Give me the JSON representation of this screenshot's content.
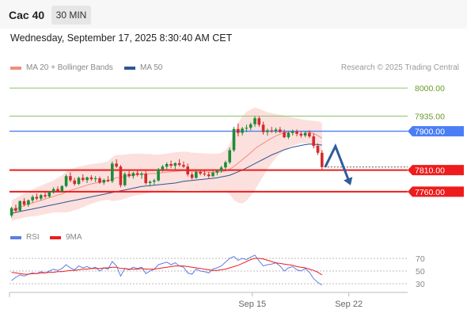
{
  "header": {
    "instrument": "Cac 40",
    "timeframe": "30 MIN"
  },
  "datetime": "Wednesday, September 17, 2025 8:30:40 AM CET",
  "legend": [
    {
      "label": "MA 20 + Bollinger Bands",
      "color": "#f28b82"
    },
    {
      "label": "MA 50",
      "color": "#2f5597"
    }
  ],
  "rsi_legend": [
    {
      "label": "RSI",
      "color": "#5b7ee5"
    },
    {
      "label": "9MA",
      "color": "#ee1c1c"
    }
  ],
  "credit": "Research © 2025 Trading Central",
  "colors": {
    "up": "#1e8c3a",
    "down": "#d22b2b",
    "support": "#ee1c1c",
    "pivot": "#4a7ef5",
    "resistance": "#8dc46a",
    "arrow": "#2f5c9a"
  },
  "chart_data": {
    "type": "candlestick",
    "ylim": [
      7690,
      8035
    ],
    "levels": [
      {
        "value": 8000,
        "label": "8000.00",
        "kind": "resistance"
      },
      {
        "value": 7935,
        "label": "7935.00",
        "kind": "resistance"
      },
      {
        "value": 7900,
        "label": "7900.00",
        "kind": "pivot"
      },
      {
        "value": 7810,
        "label": "7810.00",
        "kind": "support"
      },
      {
        "value": 7760,
        "label": "7760.00",
        "kind": "support"
      }
    ],
    "last_price": 7817,
    "projection": [
      7817,
      7865,
      7780
    ],
    "x_ticks": [
      {
        "label": "Sep 15",
        "at_bar": 57
      },
      {
        "label": "Sep 22",
        "at_bar": 80
      }
    ],
    "candles_ohlc": [
      [
        7705,
        7725,
        7700,
        7722
      ],
      [
        7722,
        7730,
        7712,
        7716
      ],
      [
        7716,
        7740,
        7714,
        7738
      ],
      [
        7738,
        7745,
        7726,
        7730
      ],
      [
        7730,
        7742,
        7725,
        7740
      ],
      [
        7740,
        7752,
        7735,
        7748
      ],
      [
        7748,
        7756,
        7740,
        7744
      ],
      [
        7744,
        7755,
        7740,
        7752
      ],
      [
        7752,
        7760,
        7745,
        7749
      ],
      [
        7749,
        7762,
        7746,
        7760
      ],
      [
        7760,
        7770,
        7755,
        7766
      ],
      [
        7766,
        7772,
        7758,
        7761
      ],
      [
        7761,
        7775,
        7759,
        7773
      ],
      [
        7773,
        7800,
        7770,
        7796
      ],
      [
        7796,
        7805,
        7782,
        7786
      ],
      [
        7786,
        7792,
        7774,
        7778
      ],
      [
        7778,
        7795,
        7775,
        7792
      ],
      [
        7792,
        7800,
        7783,
        7787
      ],
      [
        7787,
        7795,
        7780,
        7793
      ],
      [
        7793,
        7798,
        7785,
        7789
      ],
      [
        7789,
        7796,
        7782,
        7791
      ],
      [
        7791,
        7795,
        7778,
        7781
      ],
      [
        7781,
        7790,
        7776,
        7787
      ],
      [
        7787,
        7796,
        7782,
        7784
      ],
      [
        7784,
        7830,
        7780,
        7825
      ],
      [
        7825,
        7835,
        7815,
        7818
      ],
      [
        7818,
        7822,
        7770,
        7775
      ],
      [
        7775,
        7805,
        7772,
        7801
      ],
      [
        7801,
        7808,
        7792,
        7796
      ],
      [
        7796,
        7806,
        7790,
        7803
      ],
      [
        7803,
        7810,
        7795,
        7799
      ],
      [
        7799,
        7806,
        7790,
        7802
      ],
      [
        7802,
        7808,
        7776,
        7780
      ],
      [
        7780,
        7786,
        7772,
        7783
      ],
      [
        7783,
        7790,
        7776,
        7786
      ],
      [
        7786,
        7815,
        7783,
        7812
      ],
      [
        7812,
        7822,
        7806,
        7818
      ],
      [
        7818,
        7828,
        7812,
        7824
      ],
      [
        7824,
        7832,
        7815,
        7820
      ],
      [
        7820,
        7828,
        7812,
        7826
      ],
      [
        7826,
        7835,
        7818,
        7822
      ],
      [
        7822,
        7830,
        7815,
        7818
      ],
      [
        7818,
        7825,
        7795,
        7800
      ],
      [
        7800,
        7805,
        7788,
        7792
      ],
      [
        7792,
        7808,
        7790,
        7806
      ],
      [
        7806,
        7812,
        7798,
        7802
      ],
      [
        7802,
        7810,
        7796,
        7800
      ],
      [
        7800,
        7806,
        7792,
        7796
      ],
      [
        7796,
        7808,
        7794,
        7804
      ],
      [
        7804,
        7812,
        7798,
        7808
      ],
      [
        7808,
        7820,
        7804,
        7816
      ],
      [
        7816,
        7832,
        7812,
        7828
      ],
      [
        7828,
        7862,
        7824,
        7856
      ],
      [
        7856,
        7910,
        7852,
        7905
      ],
      [
        7905,
        7918,
        7888,
        7896
      ],
      [
        7896,
        7910,
        7890,
        7906
      ],
      [
        7906,
        7915,
        7898,
        7908
      ],
      [
        7908,
        7920,
        7902,
        7916
      ],
      [
        7916,
        7935,
        7910,
        7930
      ],
      [
        7930,
        7934,
        7910,
        7915
      ],
      [
        7915,
        7922,
        7892,
        7898
      ],
      [
        7898,
        7906,
        7890,
        7902
      ],
      [
        7902,
        7910,
        7896,
        7900
      ],
      [
        7900,
        7908,
        7895,
        7904
      ],
      [
        7904,
        7910,
        7896,
        7898
      ],
      [
        7898,
        7904,
        7884,
        7886
      ],
      [
        7886,
        7900,
        7882,
        7896
      ],
      [
        7896,
        7904,
        7890,
        7900
      ],
      [
        7900,
        7904,
        7888,
        7894
      ],
      [
        7894,
        7900,
        7885,
        7890
      ],
      [
        7890,
        7900,
        7886,
        7896
      ],
      [
        7896,
        7902,
        7884,
        7888
      ],
      [
        7888,
        7895,
        7860,
        7866
      ],
      [
        7866,
        7872,
        7845,
        7850
      ],
      [
        7850,
        7856,
        7812,
        7817
      ]
    ],
    "ma20": [
      7716,
      7720,
      7724,
      7728,
      7731,
      7734,
      7737,
      7740,
      7743,
      7746,
      7749,
      7752,
      7755,
      7759,
      7763,
      7766,
      7769,
      7772,
      7775,
      7778,
      7780,
      7782,
      7784,
      7786,
      7789,
      7792,
      7793,
      7795,
      7797,
      7799,
      7800,
      7801,
      7801,
      7802,
      7802,
      7803,
      7804,
      7805,
      7806,
      7807,
      7808,
      7809,
      7808,
      7807,
      7807,
      7806,
      7806,
      7805,
      7805,
      7805,
      7806,
      7808,
      7812,
      7818,
      7826,
      7834,
      7842,
      7850,
      7859,
      7866,
      7872,
      7878,
      7884,
      7889,
      7893,
      7896,
      7898,
      7899,
      7900,
      7900,
      7899,
      7898,
      7895,
      7890,
      7884
    ],
    "bb_upper": [
      7740,
      7745,
      7750,
      7756,
      7760,
      7765,
      7770,
      7774,
      7778,
      7782,
      7786,
      7792,
      7798,
      7806,
      7812,
      7815,
      7818,
      7820,
      7822,
      7824,
      7825,
      7826,
      7828,
      7830,
      7840,
      7845,
      7845,
      7846,
      7847,
      7848,
      7848,
      7848,
      7847,
      7847,
      7846,
      7846,
      7847,
      7848,
      7850,
      7851,
      7852,
      7853,
      7852,
      7850,
      7850,
      7849,
      7849,
      7848,
      7848,
      7848,
      7850,
      7856,
      7870,
      7895,
      7918,
      7935,
      7945,
      7950,
      7955,
      7952,
      7948,
      7944,
      7942,
      7940,
      7938,
      7936,
      7934,
      7932,
      7930,
      7928,
      7926,
      7925,
      7924,
      7923,
      7920
    ],
    "bb_lower": [
      7692,
      7695,
      7698,
      7700,
      7702,
      7703,
      7704,
      7706,
      7708,
      7710,
      7712,
      7712,
      7712,
      7712,
      7714,
      7717,
      7720,
      7724,
      7728,
      7732,
      7735,
      7738,
      7740,
      7742,
      7738,
      7739,
      7741,
      7744,
      7747,
      7750,
      7752,
      7754,
      7755,
      7757,
      7758,
      7760,
      7761,
      7762,
      7762,
      7763,
      7764,
      7765,
      7764,
      7764,
      7764,
      7763,
      7763,
      7762,
      7762,
      7762,
      7762,
      7760,
      7754,
      7741,
      7734,
      7733,
      7739,
      7750,
      7763,
      7780,
      7796,
      7812,
      7826,
      7838,
      7848,
      7856,
      7862,
      7866,
      7870,
      7872,
      7872,
      7871,
      7866,
      7857,
      7848
    ],
    "ma50": [
      7710,
      7712,
      7714,
      7716,
      7718,
      7720,
      7722,
      7724,
      7726,
      7728,
      7730,
      7732,
      7734,
      7736,
      7738,
      7740,
      7742,
      7744,
      7746,
      7748,
      7750,
      7752,
      7754,
      7756,
      7758,
      7760,
      7762,
      7764,
      7766,
      7768,
      7770,
      7772,
      7773,
      7774,
      7775,
      7776,
      7777,
      7778,
      7779,
      7780,
      7782,
      7784,
      7785,
      7786,
      7787,
      7788,
      7789,
      7790,
      7791,
      7792,
      7794,
      7796,
      7798,
      7802,
      7806,
      7810,
      7815,
      7820,
      7825,
      7830,
      7835,
      7840,
      7845,
      7849,
      7853,
      7857,
      7860,
      7863,
      7865,
      7867,
      7869,
      7870,
      7870,
      7869,
      7868
    ],
    "rsi_ylim": [
      25,
      80
    ],
    "rsi_levels": [
      {
        "value": 70,
        "label": "70"
      },
      {
        "value": 50,
        "label": "50"
      },
      {
        "value": 30,
        "label": "30"
      }
    ],
    "rsi": [
      35,
      40,
      44,
      42,
      45,
      47,
      46,
      49,
      47,
      50,
      53,
      51,
      54,
      60,
      55,
      52,
      58,
      55,
      57,
      54,
      56,
      50,
      55,
      53,
      65,
      58,
      42,
      54,
      52,
      56,
      54,
      56,
      46,
      50,
      53,
      60,
      62,
      64,
      60,
      63,
      58,
      56,
      47,
      45,
      53,
      50,
      49,
      47,
      53,
      55,
      58,
      64,
      70,
      73,
      67,
      70,
      68,
      72,
      75,
      66,
      58,
      60,
      61,
      63,
      58,
      50,
      55,
      57,
      52,
      50,
      54,
      48,
      38,
      32,
      28
    ],
    "rsi_ma": [
      48,
      47,
      46,
      45,
      45,
      46,
      46,
      47,
      47,
      48,
      48,
      49,
      49,
      50,
      51,
      51,
      52,
      53,
      53,
      54,
      54,
      54,
      55,
      55,
      56,
      56,
      54,
      54,
      53,
      53,
      53,
      54,
      53,
      53,
      53,
      54,
      55,
      56,
      57,
      58,
      58,
      58,
      57,
      56,
      55,
      54,
      53,
      52,
      51,
      51,
      52,
      53,
      55,
      57,
      59,
      62,
      65,
      68,
      70,
      70,
      69,
      67,
      65,
      63,
      62,
      61,
      60,
      59,
      57,
      56,
      55,
      53,
      51,
      48,
      44
    ]
  }
}
